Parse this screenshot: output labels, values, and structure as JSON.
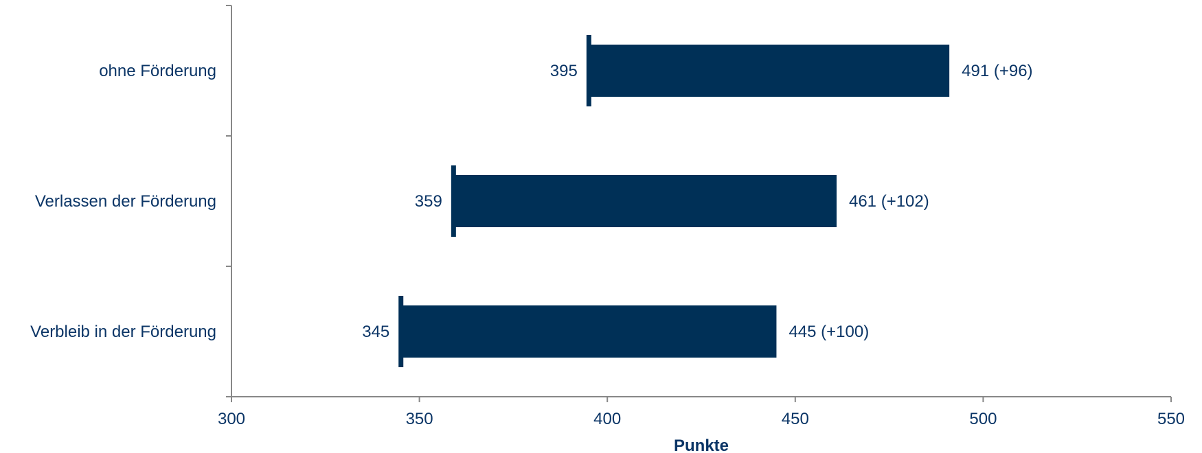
{
  "chart_data": {
    "type": "bar",
    "orientation": "horizontal",
    "title": "",
    "xlabel": "Punkte",
    "ylabel": "",
    "categories": [
      "ohne Förderung",
      "Verlassen der Förderung",
      "Verbleib in der Förderung"
    ],
    "series": [
      {
        "start": [
          395,
          359,
          345
        ],
        "end": [
          491,
          461,
          445
        ],
        "change": [
          96,
          102,
          100
        ],
        "start_labels": [
          "395",
          "359",
          "345"
        ],
        "end_labels": [
          "491 (+96)",
          "461 (+102)",
          "445 (+100)"
        ]
      }
    ],
    "xlim": [
      300,
      550
    ],
    "xticks": [
      300,
      350,
      400,
      450,
      500,
      550
    ],
    "xtick_labels": [
      "300",
      "350",
      "400",
      "450",
      "500",
      "550"
    ],
    "grid": false,
    "legend": "none",
    "colors": {
      "bar": "#003057",
      "text": "#0b3566",
      "axis": "#888888"
    }
  }
}
